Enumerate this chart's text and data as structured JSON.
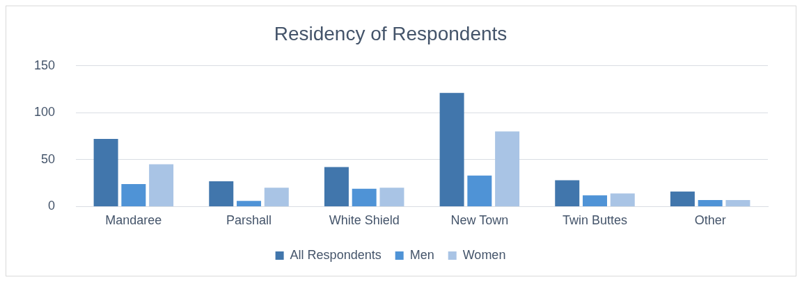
{
  "chart_data": {
    "type": "bar",
    "title": "Residency of Respondents",
    "categories": [
      "Mandaree",
      "Parshall",
      "White Shield",
      "New Town",
      "Twin Buttes",
      "Other"
    ],
    "series": [
      {
        "name": "All Respondents",
        "color": "#4176ac",
        "values": [
          72,
          27,
          42,
          121,
          28,
          16
        ]
      },
      {
        "name": "Men",
        "color": "#4f93d6",
        "values": [
          24,
          6,
          19,
          33,
          12,
          7
        ]
      },
      {
        "name": "Women",
        "color": "#a9c4e5",
        "values": [
          45,
          20,
          20,
          80,
          14,
          7
        ]
      }
    ],
    "ylim": [
      0,
      150
    ],
    "yticks": [
      0,
      50,
      100,
      150
    ],
    "grid": "y",
    "legend": "bottom"
  }
}
